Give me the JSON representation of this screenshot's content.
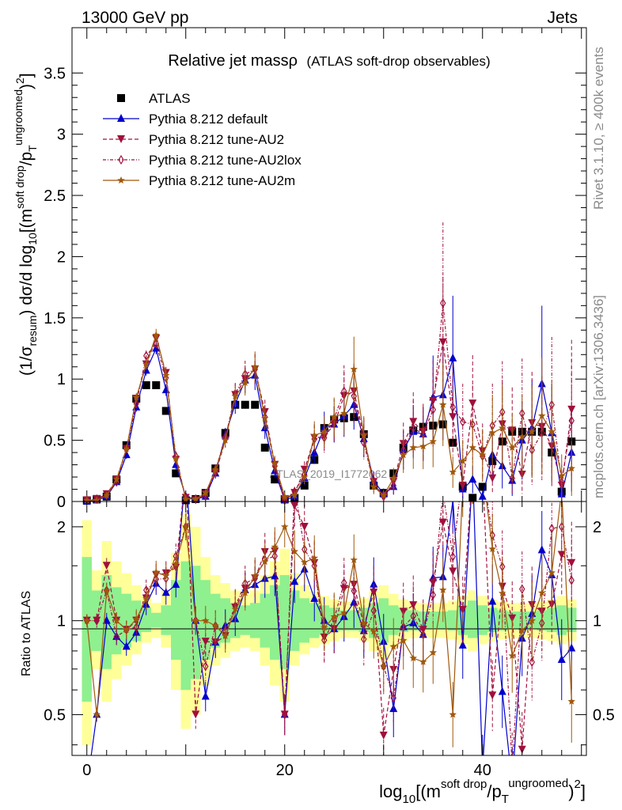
{
  "header": {
    "left": "13000 GeV pp",
    "right": "Jets"
  },
  "side_labels": {
    "rivet": "Rivet 3.1.10, ≥ 400k events",
    "mcplots": "mcplots.cern.ch [arXiv:1306.3436]"
  },
  "chart_data": [
    {
      "type": "scatter",
      "title": "Relative jet massρ",
      "subtitle": "(ATLAS soft-drop observables)",
      "watermark": "ATLAS_2019_I1772062",
      "ylabel": "(1/σresum) dσ/d log10[(m soft drop/pT ungroomed)2]",
      "ylabel_parts": {
        "a": "(1/σ",
        "b": "resum",
        "c": ") dσ/d log",
        "d": "10",
        "e": "[(m",
        "f": "soft drop",
        "g": "/p",
        "h": "T",
        "i": "ungroomed",
        "j": ")",
        "k": "2",
        "l": "]"
      },
      "xlabel_parts": {
        "a": "log",
        "b": "10",
        "c": "[(m",
        "d": "soft drop",
        "e": "/p",
        "f": "T",
        "g": "ungroomed",
        "h": ")",
        "i": "2",
        "j": "]"
      },
      "xlim": [
        -1.5,
        50.5
      ],
      "ylim": [
        0,
        3.87
      ],
      "yticks": [
        0,
        0.5,
        1,
        1.5,
        2,
        2.5,
        3,
        3.5
      ],
      "ytick_labels": [
        "0",
        "0.5",
        "1",
        "1.5",
        "2",
        "2.5",
        "3",
        "3.5"
      ],
      "x": [
        0,
        1,
        2,
        3,
        4,
        5,
        6,
        7,
        8,
        9,
        10,
        11,
        12,
        13,
        14,
        15,
        16,
        17,
        18,
        19,
        20,
        21,
        22,
        23,
        24,
        25,
        26,
        27,
        28,
        29,
        30,
        31,
        32,
        33,
        34,
        35,
        36,
        37,
        38,
        39,
        40,
        41,
        42,
        43,
        44,
        45,
        46,
        47,
        48,
        49
      ],
      "series": [
        {
          "name": "ATLAS",
          "color": "#000000",
          "marker": "square",
          "dash": "",
          "values": [
            0.01,
            0.02,
            0.04,
            0.18,
            0.46,
            0.84,
            0.95,
            0.95,
            0.74,
            0.23,
            0.01,
            0.02,
            0.07,
            0.27,
            0.56,
            0.79,
            0.79,
            0.79,
            0.44,
            0.18,
            0.02,
            0.03,
            0.13,
            0.34,
            0.6,
            0.67,
            0.68,
            0.69,
            0.55,
            0.13,
            0.07,
            0.23,
            0.44,
            0.58,
            0.61,
            0.62,
            0.63,
            0.48,
            0.12,
            0.03,
            0.12,
            0.33,
            0.49,
            0.57,
            0.57,
            0.57,
            0.57,
            0.4,
            0.08,
            0.49
          ]
        },
        {
          "name": "Pythia 8.212 default",
          "color": "#0000cc",
          "marker": "triangle-up",
          "dash": "",
          "values": [
            0.0,
            0.01,
            0.04,
            0.16,
            0.38,
            0.77,
            1.07,
            1.25,
            0.91,
            0.3,
            0.04,
            0.02,
            0.04,
            0.23,
            0.54,
            0.8,
            0.99,
            1.03,
            0.6,
            0.25,
            0.01,
            0.04,
            0.19,
            0.4,
            0.6,
            0.63,
            0.7,
            0.79,
            0.51,
            0.17,
            0.06,
            0.12,
            0.42,
            0.57,
            0.55,
            0.85,
            0.87,
            1.17,
            0.1,
            0.18,
            0.04,
            0.38,
            0.29,
            0.17,
            0.5,
            0.6,
            0.96,
            0.56,
            0.06,
            0.4
          ]
        },
        {
          "name": "Pythia 8.212 tune-AU2",
          "color": "#a0103c",
          "marker": "triangle-down",
          "dash": "5,3",
          "values": [
            0.01,
            0.02,
            0.06,
            0.18,
            0.43,
            0.84,
            1.12,
            1.33,
            1.05,
            0.34,
            0.03,
            0.01,
            0.06,
            0.23,
            0.5,
            0.87,
            1.0,
            1.08,
            0.73,
            0.3,
            0.01,
            0.07,
            0.26,
            0.52,
            0.53,
            0.63,
            0.86,
            0.9,
            0.53,
            0.16,
            0.03,
            0.16,
            0.47,
            0.65,
            0.57,
            0.82,
            1.3,
            0.69,
            0.13,
            0.8,
            0.41,
            0.19,
            0.63,
            0.58,
            0.22,
            0.64,
            0.61,
            0.45,
            0.13,
            0.75
          ]
        },
        {
          "name": "Pythia 8.212 tune-AU2lox",
          "color": "#a0103c",
          "marker": "diamond-open",
          "dash": "4,2,1,2",
          "values": [
            0.01,
            0.02,
            0.05,
            0.16,
            0.43,
            0.8,
            1.19,
            1.29,
            1.01,
            0.37,
            0.02,
            0.02,
            0.05,
            0.26,
            0.52,
            0.88,
            1.04,
            1.08,
            0.69,
            0.29,
            0.01,
            0.08,
            0.22,
            0.51,
            0.52,
            0.68,
            0.9,
            0.86,
            0.48,
            0.14,
            0.05,
            0.13,
            0.42,
            0.6,
            0.55,
            0.75,
            1.62,
            0.77,
            0.65,
            0.63,
            0.37,
            0.62,
            0.73,
            0.19,
            0.72,
            0.42,
            0.56,
            0.79,
            0.16,
            0.66
          ]
        },
        {
          "name": "Pythia 8.212 tune-AU2m",
          "color": "#a0580c",
          "marker": "star",
          "dash": "",
          "values": [
            0.01,
            0.01,
            0.05,
            0.18,
            0.43,
            0.85,
            1.12,
            1.36,
            1.03,
            0.35,
            0.02,
            0.02,
            0.07,
            0.26,
            0.5,
            0.86,
            0.97,
            1.1,
            0.68,
            0.31,
            0.04,
            0.05,
            0.2,
            0.54,
            0.57,
            0.69,
            0.72,
            1.08,
            0.54,
            0.12,
            0.05,
            0.19,
            0.38,
            0.44,
            0.45,
            0.49,
            0.79,
            0.24,
            0.33,
            0.44,
            0.38,
            0.56,
            0.6,
            0.44,
            0.53,
            0.57,
            0.7,
            0.57,
            0.21,
            0.27
          ]
        }
      ]
    },
    {
      "type": "line",
      "ylabel": "Ratio to ATLAS",
      "ylim_log": [
        0.37,
        2.41
      ],
      "yticks": [
        0.5,
        1,
        2
      ],
      "ytick_labels": [
        "0.5",
        "1",
        "2"
      ],
      "xticks": [
        0,
        20,
        40
      ],
      "xtick_labels": [
        "0",
        "20",
        "40"
      ],
      "reference": 1,
      "band_inner_color": "#8ff08f",
      "band_outer_color": "#ffff99",
      "band_inner": [
        0.55,
        0.8,
        0.7,
        0.78,
        0.82,
        0.86,
        0.92,
        0.95,
        0.9,
        0.75,
        0.6,
        0.65,
        0.75,
        0.82,
        0.85,
        0.88,
        0.9,
        0.88,
        0.82,
        0.75,
        0.7,
        0.8,
        0.85,
        0.88,
        0.9,
        0.92,
        0.93,
        0.93,
        0.92,
        0.88,
        0.85,
        0.9,
        0.92,
        0.93,
        0.94,
        0.94,
        0.94,
        0.93,
        0.9,
        0.88,
        0.9,
        0.92,
        0.93,
        0.94,
        0.94,
        0.94,
        0.93,
        0.92,
        0.9,
        0.92
      ],
      "band_inner_hi": [
        1.6,
        1.25,
        1.4,
        1.28,
        1.22,
        1.16,
        1.1,
        1.06,
        1.12,
        1.35,
        1.55,
        1.5,
        1.35,
        1.22,
        1.18,
        1.14,
        1.12,
        1.14,
        1.22,
        1.3,
        1.4,
        1.25,
        1.18,
        1.14,
        1.12,
        1.1,
        1.08,
        1.08,
        1.1,
        1.14,
        1.18,
        1.12,
        1.1,
        1.08,
        1.07,
        1.07,
        1.07,
        1.08,
        1.12,
        1.16,
        1.12,
        1.1,
        1.08,
        1.07,
        1.07,
        1.07,
        1.08,
        1.1,
        1.12,
        1.1
      ],
      "band_outer_lo": [
        0.4,
        0.7,
        0.55,
        0.65,
        0.72,
        0.78,
        0.85,
        0.88,
        0.82,
        0.6,
        0.45,
        0.5,
        0.62,
        0.72,
        0.76,
        0.8,
        0.82,
        0.8,
        0.72,
        0.62,
        0.55,
        0.72,
        0.78,
        0.82,
        0.84,
        0.86,
        0.88,
        0.88,
        0.86,
        0.8,
        0.75,
        0.82,
        0.86,
        0.88,
        0.89,
        0.88,
        0.88,
        0.87,
        0.84,
        0.8,
        0.84,
        0.86,
        0.87,
        0.88,
        0.88,
        0.88,
        0.87,
        0.86,
        0.84,
        0.86
      ],
      "band_outer_hi": [
        2.1,
        1.45,
        1.8,
        1.55,
        1.42,
        1.3,
        1.2,
        1.14,
        1.25,
        1.65,
        2.2,
        2.0,
        1.6,
        1.4,
        1.32,
        1.25,
        1.22,
        1.25,
        1.4,
        1.55,
        1.7,
        1.42,
        1.3,
        1.24,
        1.2,
        1.17,
        1.15,
        1.15,
        1.18,
        1.24,
        1.3,
        1.22,
        1.17,
        1.15,
        1.14,
        1.14,
        1.14,
        1.16,
        1.2,
        1.25,
        1.2,
        1.17,
        1.15,
        1.14,
        1.14,
        1.14,
        1.15,
        1.17,
        1.2,
        1.17
      ]
    }
  ]
}
